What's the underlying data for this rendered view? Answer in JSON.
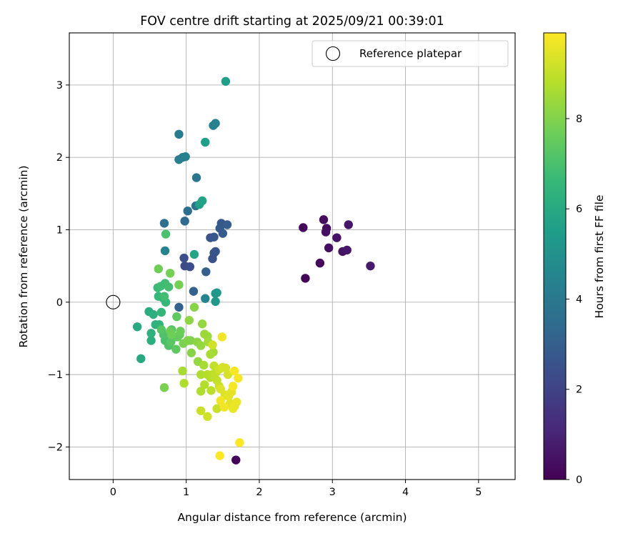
{
  "chart_data": {
    "type": "scatter",
    "title": "FOV centre drift starting at 2025/09/21 00:39:01",
    "xlabel": "Angular distance from reference (arcmin)",
    "ylabel": "Rotation from reference (arcmin)",
    "xlim": [
      -0.6,
      5.5
    ],
    "ylim": [
      -2.45,
      3.72
    ],
    "xticks": [
      0,
      1,
      2,
      3,
      4,
      5
    ],
    "yticks": [
      -2,
      -1,
      0,
      1,
      2,
      3
    ],
    "grid": true,
    "legend": {
      "placement": "top-right",
      "entries": [
        "Reference platepar"
      ]
    },
    "reference_point": {
      "x": 0,
      "y": 0,
      "label": "Reference platepar"
    },
    "colorbar": {
      "label": "Hours from first FF file",
      "colormap": "viridis",
      "range": [
        0,
        9.9
      ],
      "ticks": [
        0,
        2,
        4,
        6,
        8
      ],
      "stops": [
        "#440154",
        "#482878",
        "#3e4989",
        "#31688e",
        "#26828e",
        "#1f9e89",
        "#35b779",
        "#6ece58",
        "#b5de2b",
        "#fde725"
      ]
    },
    "points": [
      [
        2.63,
        0.33,
        0.1
      ],
      [
        2.6,
        1.03,
        0.2
      ],
      [
        2.83,
        0.54,
        0.2
      ],
      [
        2.88,
        1.14,
        0.3
      ],
      [
        2.92,
        1.02,
        0.3
      ],
      [
        2.91,
        0.97,
        0.4
      ],
      [
        2.95,
        0.75,
        0.4
      ],
      [
        3.06,
        0.89,
        0.5
      ],
      [
        3.14,
        0.7,
        0.5
      ],
      [
        3.2,
        0.72,
        0.6
      ],
      [
        3.22,
        1.07,
        0.6
      ],
      [
        3.52,
        0.5,
        0.7
      ],
      [
        1.68,
        -2.18,
        0.1
      ],
      [
        0.98,
        0.5,
        2.3
      ],
      [
        1.05,
        0.49,
        2.4
      ],
      [
        0.97,
        0.61,
        2.4
      ],
      [
        1.36,
        0.6,
        2.5
      ],
      [
        1.38,
        0.68,
        2.5
      ],
      [
        1.4,
        0.7,
        2.6
      ],
      [
        1.33,
        0.89,
        2.6
      ],
      [
        1.38,
        0.9,
        2.7
      ],
      [
        1.48,
        1.09,
        2.7
      ],
      [
        1.46,
        1.02,
        2.8
      ],
      [
        1.5,
        0.95,
        2.8
      ],
      [
        1.56,
        1.07,
        2.9
      ],
      [
        1.27,
        0.42,
        3.0
      ],
      [
        1.1,
        0.15,
        3.1
      ],
      [
        0.9,
        -0.07,
        3.1
      ],
      [
        0.98,
        1.12,
        3.4
      ],
      [
        0.7,
        1.09,
        3.6
      ],
      [
        1.02,
        1.26,
        3.6
      ],
      [
        1.13,
        1.33,
        3.7
      ],
      [
        1.14,
        1.72,
        3.9
      ],
      [
        0.9,
        2.32,
        4.1
      ],
      [
        0.9,
        1.97,
        4.2
      ],
      [
        0.95,
        2.0,
        4.2
      ],
      [
        0.99,
        2.01,
        4.3
      ],
      [
        1.37,
        2.44,
        4.3
      ],
      [
        1.4,
        2.47,
        4.4
      ],
      [
        0.71,
        0.71,
        4.4
      ],
      [
        1.26,
        0.05,
        4.5
      ],
      [
        1.4,
        0.12,
        5.2
      ],
      [
        1.42,
        0.13,
        5.3
      ],
      [
        1.4,
        0.01,
        5.3
      ],
      [
        1.54,
        3.05,
        5.5
      ],
      [
        1.26,
        2.21,
        5.5
      ],
      [
        1.18,
        1.35,
        5.6
      ],
      [
        1.22,
        1.4,
        5.7
      ],
      [
        1.11,
        0.66,
        5.8
      ],
      [
        0.33,
        -0.34,
        6.0
      ],
      [
        0.38,
        -0.78,
        6.0
      ],
      [
        0.49,
        -0.13,
        6.1
      ],
      [
        0.52,
        -0.53,
        6.2
      ],
      [
        0.55,
        -0.17,
        6.2
      ],
      [
        0.52,
        -0.43,
        6.3
      ],
      [
        0.58,
        -0.31,
        6.3
      ],
      [
        0.63,
        -0.31,
        6.4
      ],
      [
        0.66,
        -0.14,
        6.5
      ],
      [
        0.68,
        0.06,
        6.5
      ],
      [
        0.72,
        0.0,
        6.6
      ],
      [
        0.62,
        0.08,
        6.6
      ],
      [
        0.61,
        0.2,
        6.7
      ],
      [
        0.65,
        0.22,
        6.8
      ],
      [
        0.71,
        0.26,
        6.8
      ],
      [
        0.76,
        0.21,
        6.9
      ],
      [
        0.7,
        0.08,
        6.9
      ],
      [
        0.72,
        0.94,
        7.0
      ],
      [
        0.71,
        -0.53,
        7.0
      ],
      [
        0.76,
        -0.6,
        7.1
      ],
      [
        0.69,
        -0.45,
        7.1
      ],
      [
        0.66,
        -0.38,
        7.2
      ],
      [
        0.8,
        -0.38,
        7.2
      ],
      [
        0.79,
        -0.55,
        7.3
      ],
      [
        0.84,
        -0.48,
        7.3
      ],
      [
        0.86,
        -0.65,
        7.4
      ],
      [
        0.87,
        -0.2,
        7.4
      ],
      [
        0.88,
        -0.48,
        7.5
      ],
      [
        0.91,
        -0.45,
        7.5
      ],
      [
        0.92,
        -0.4,
        7.6
      ],
      [
        0.78,
        -0.4,
        7.6
      ],
      [
        0.8,
        -0.45,
        7.7
      ],
      [
        0.62,
        0.46,
        7.7
      ],
      [
        0.78,
        0.4,
        7.8
      ],
      [
        0.9,
        0.24,
        7.8
      ],
      [
        0.7,
        -1.18,
        7.9
      ],
      [
        0.96,
        -0.57,
        7.9
      ],
      [
        1.02,
        -0.53,
        8.0
      ],
      [
        1.06,
        -0.53,
        8.0
      ],
      [
        1.07,
        -0.7,
        8.1
      ],
      [
        1.11,
        -0.07,
        8.1
      ],
      [
        1.04,
        -0.25,
        8.2
      ],
      [
        1.15,
        -0.55,
        8.2
      ],
      [
        1.16,
        -0.82,
        8.3
      ],
      [
        1.2,
        -0.6,
        8.3
      ],
      [
        1.22,
        -0.3,
        8.3
      ],
      [
        1.25,
        -0.44,
        8.4
      ],
      [
        1.29,
        -0.47,
        8.4
      ],
      [
        1.3,
        -0.55,
        8.5
      ],
      [
        1.37,
        -0.69,
        8.5
      ],
      [
        1.33,
        -0.72,
        8.6
      ],
      [
        1.24,
        -0.87,
        8.6
      ],
      [
        0.95,
        -0.95,
        8.6
      ],
      [
        0.97,
        -1.12,
        8.7
      ],
      [
        1.2,
        -1.0,
        8.7
      ],
      [
        1.2,
        -1.23,
        8.7
      ],
      [
        1.25,
        -1.14,
        8.8
      ],
      [
        1.29,
        -1.0,
        8.8
      ],
      [
        1.33,
        -1.04,
        8.8
      ],
      [
        1.34,
        -1.22,
        8.9
      ],
      [
        1.36,
        -1.0,
        8.9
      ],
      [
        1.38,
        -0.88,
        9.0
      ],
      [
        1.4,
        -0.98,
        9.0
      ],
      [
        1.42,
        -1.08,
        9.0
      ],
      [
        1.45,
        -1.16,
        9.1
      ],
      [
        1.42,
        -1.47,
        9.1
      ],
      [
        1.2,
        -1.5,
        9.1
      ],
      [
        1.29,
        -1.58,
        9.2
      ],
      [
        1.36,
        -0.59,
        9.2
      ],
      [
        1.45,
        -0.93,
        9.2
      ],
      [
        1.5,
        -0.9,
        9.3
      ],
      [
        1.54,
        -0.91,
        9.3
      ],
      [
        1.57,
        -1.0,
        9.3
      ],
      [
        1.47,
        -1.2,
        9.4
      ],
      [
        1.53,
        -1.28,
        9.4
      ],
      [
        1.55,
        -1.29,
        9.4
      ],
      [
        1.58,
        -1.3,
        9.5
      ],
      [
        1.62,
        -1.24,
        9.5
      ],
      [
        1.6,
        -1.4,
        9.5
      ],
      [
        1.64,
        -1.47,
        9.6
      ],
      [
        1.66,
        -1.44,
        9.6
      ],
      [
        1.69,
        -1.38,
        9.6
      ],
      [
        1.47,
        -1.36,
        9.7
      ],
      [
        1.49,
        -0.48,
        9.7
      ],
      [
        1.52,
        -1.45,
        9.7
      ],
      [
        1.64,
        -1.16,
        9.8
      ],
      [
        1.66,
        -0.95,
        9.8
      ],
      [
        1.71,
        -1.05,
        9.8
      ],
      [
        1.73,
        -1.94,
        9.9
      ],
      [
        1.46,
        -2.12,
        9.9
      ]
    ]
  }
}
